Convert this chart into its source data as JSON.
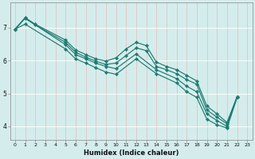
{
  "xlabel": "Humidex (Indice chaleur)",
  "bg_color": "#d4edec",
  "grid_color": "#c8e8e8",
  "line_color": "#1e7b72",
  "xlim": [
    -0.5,
    23.5
  ],
  "ylim": [
    3.6,
    7.75
  ],
  "yticks": [
    4,
    5,
    6,
    7
  ],
  "xticks": [
    0,
    1,
    2,
    3,
    4,
    5,
    6,
    7,
    8,
    9,
    10,
    11,
    12,
    13,
    14,
    15,
    16,
    17,
    18,
    19,
    20,
    21,
    22,
    23
  ],
  "lines": [
    {
      "x": [
        0,
        1,
        2,
        5,
        6,
        7,
        8,
        9,
        10,
        11,
        12,
        13,
        14,
        15,
        16,
        17,
        18,
        19,
        20,
        21,
        22
      ],
      "y": [
        6.95,
        7.3,
        7.1,
        6.62,
        6.32,
        6.18,
        6.05,
        5.98,
        6.08,
        6.35,
        6.55,
        6.45,
        5.95,
        5.82,
        5.72,
        5.55,
        5.38,
        4.62,
        4.38,
        4.12,
        4.9
      ]
    },
    {
      "x": [
        0,
        1,
        2,
        5,
        6,
        7,
        8,
        9,
        10,
        11,
        12,
        13,
        14,
        15,
        16,
        17,
        18,
        19,
        20,
        21,
        22
      ],
      "y": [
        6.95,
        7.28,
        7.08,
        6.55,
        6.25,
        6.1,
        5.98,
        5.88,
        5.92,
        6.15,
        6.38,
        6.3,
        5.82,
        5.72,
        5.6,
        5.42,
        5.28,
        4.5,
        4.28,
        4.08,
        4.9
      ]
    },
    {
      "x": [
        0,
        1,
        5,
        6,
        7,
        8,
        9,
        10,
        12,
        14,
        16,
        17,
        18,
        19,
        20,
        21,
        22
      ],
      "y": [
        6.95,
        7.28,
        6.48,
        6.18,
        6.05,
        5.92,
        5.82,
        5.75,
        6.2,
        5.72,
        5.45,
        5.22,
        5.05,
        4.38,
        4.18,
        4.0,
        4.88
      ]
    },
    {
      "x": [
        0,
        1,
        5,
        6,
        7,
        8,
        9,
        10,
        12,
        14,
        16,
        17,
        18,
        19,
        20,
        21,
        22
      ],
      "y": [
        6.95,
        7.1,
        6.35,
        6.05,
        5.92,
        5.78,
        5.65,
        5.58,
        6.05,
        5.6,
        5.32,
        5.05,
        4.88,
        4.22,
        4.05,
        3.95,
        4.88
      ]
    }
  ]
}
